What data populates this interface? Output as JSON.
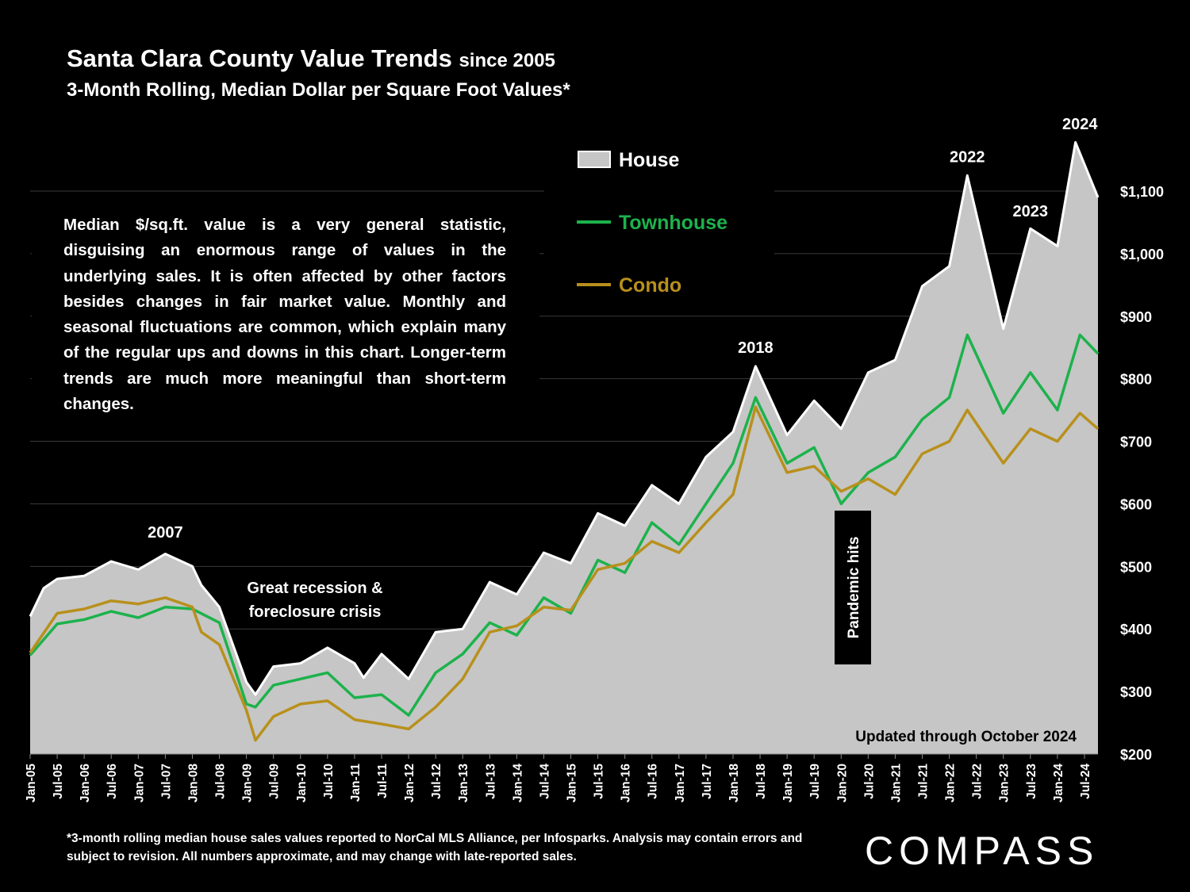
{
  "header": {
    "title": "Santa Clara County Value Trends",
    "title_suffix": "since 2005",
    "subtitle": "3-Month Rolling, Median Dollar per Square Foot Values*"
  },
  "description": "Median $/sq.ft. value is a very general statistic, disguising an enormous range of values in the underlying sales. It is often affected by other factors besides changes in fair market value. Monthly and seasonal fluctuations are common, which explain many of the regular ups and downs in this chart. Longer-term trends are much more meaningful than short-term changes.",
  "footnote": "*3-month rolling median house sales values reported to NorCal MLS Alliance, per Infosparks. Analysis may contain errors and subject to revision. All numbers approximate, and may change with late-reported sales.",
  "brand": "COMPASS",
  "colors": {
    "house": "#c6c6c6",
    "townhouse": "#1db24c",
    "condo": "#b8901c"
  },
  "chart_data": {
    "type": "area",
    "title": "Santa Clara County Value Trends since 2005",
    "subtitle": "3-Month Rolling, Median Dollar per Square Foot Values*",
    "x_start": "Jan-05",
    "x_end": "Oct-24",
    "x_ticks": [
      "Jan-05",
      "Jul-05",
      "Jan-06",
      "Jul-06",
      "Jan-07",
      "Jul-07",
      "Jan-08",
      "Jul-08",
      "Jan-09",
      "Jul-09",
      "Jan-10",
      "Jul-10",
      "Jan-11",
      "Jul-11",
      "Jan-12",
      "Jul-12",
      "Jan-13",
      "Jul-13",
      "Jan-14",
      "Jul-14",
      "Jan-15",
      "Jul-15",
      "Jan-16",
      "Jul-16",
      "Jan-17",
      "Jul-17",
      "Jan-18",
      "Jul-18",
      "Jan-19",
      "Jul-19",
      "Jan-20",
      "Jul-20",
      "Jan-21",
      "Jul-21",
      "Jan-22",
      "Jul-22",
      "Jan-23",
      "Jul-23",
      "Jan-24",
      "Jul-24"
    ],
    "y_ticks": [
      "$200",
      "$300",
      "$400",
      "$500",
      "$600",
      "$700",
      "$800",
      "$900",
      "$1,000",
      "$1,100"
    ],
    "ylim": [
      200,
      1100
    ],
    "y_axis_position": "right",
    "legend_position": "top-center",
    "series": [
      {
        "name": "House",
        "style": "area",
        "color": "#c6c6c6",
        "points": [
          [
            "Jan-05",
            420
          ],
          [
            "Apr-05",
            465
          ],
          [
            "Jul-05",
            480
          ],
          [
            "Jan-06",
            485
          ],
          [
            "Jul-06",
            508
          ],
          [
            "Jan-07",
            495
          ],
          [
            "Jul-07",
            520
          ],
          [
            "Jan-08",
            500
          ],
          [
            "Mar-08",
            470
          ],
          [
            "Jul-08",
            435
          ],
          [
            "Jan-09",
            315
          ],
          [
            "Mar-09",
            295
          ],
          [
            "Jul-09",
            340
          ],
          [
            "Jan-10",
            345
          ],
          [
            "Jul-10",
            370
          ],
          [
            "Jan-11",
            345
          ],
          [
            "Mar-11",
            322
          ],
          [
            "Jul-11",
            360
          ],
          [
            "Jan-12",
            320
          ],
          [
            "Jul-12",
            395
          ],
          [
            "Jan-13",
            400
          ],
          [
            "Jul-13",
            475
          ],
          [
            "Jan-14",
            455
          ],
          [
            "Jul-14",
            522
          ],
          [
            "Jan-15",
            505
          ],
          [
            "Jul-15",
            585
          ],
          [
            "Jan-16",
            565
          ],
          [
            "Jul-16",
            630
          ],
          [
            "Jan-17",
            600
          ],
          [
            "Jul-17",
            675
          ],
          [
            "Jan-18",
            715
          ],
          [
            "Jun-18",
            820
          ],
          [
            "Jan-19",
            710
          ],
          [
            "Jul-19",
            765
          ],
          [
            "Jan-20",
            720
          ],
          [
            "Jul-20",
            810
          ],
          [
            "Jan-21",
            830
          ],
          [
            "Jul-21",
            948
          ],
          [
            "Jan-22",
            980
          ],
          [
            "May-22",
            1125
          ],
          [
            "Jan-23",
            880
          ],
          [
            "Jul-23",
            1040
          ],
          [
            "Jan-24",
            1012
          ],
          [
            "May-24",
            1178
          ],
          [
            "Oct-24",
            1090
          ]
        ]
      },
      {
        "name": "Townhouse",
        "style": "line",
        "color": "#1db24c",
        "points": [
          [
            "Jan-05",
            358
          ],
          [
            "Jul-05",
            408
          ],
          [
            "Jan-06",
            415
          ],
          [
            "Jul-06",
            428
          ],
          [
            "Jan-07",
            418
          ],
          [
            "Jul-07",
            435
          ],
          [
            "Jan-08",
            432
          ],
          [
            "Jul-08",
            410
          ],
          [
            "Jan-09",
            280
          ],
          [
            "Mar-09",
            275
          ],
          [
            "Jul-09",
            310
          ],
          [
            "Jan-10",
            320
          ],
          [
            "Jul-10",
            330
          ],
          [
            "Jan-11",
            290
          ],
          [
            "Jul-11",
            295
          ],
          [
            "Jan-12",
            262
          ],
          [
            "Jul-12",
            330
          ],
          [
            "Jan-13",
            360
          ],
          [
            "Jul-13",
            410
          ],
          [
            "Jan-14",
            390
          ],
          [
            "Jul-14",
            450
          ],
          [
            "Jan-15",
            425
          ],
          [
            "Jul-15",
            510
          ],
          [
            "Jan-16",
            490
          ],
          [
            "Jul-16",
            570
          ],
          [
            "Jan-17",
            535
          ],
          [
            "Jul-17",
            600
          ],
          [
            "Jan-18",
            665
          ],
          [
            "Jun-18",
            770
          ],
          [
            "Jan-19",
            665
          ],
          [
            "Jul-19",
            690
          ],
          [
            "Jan-20",
            600
          ],
          [
            "Jul-20",
            650
          ],
          [
            "Jan-21",
            675
          ],
          [
            "Jul-21",
            735
          ],
          [
            "Jan-22",
            770
          ],
          [
            "May-22",
            870
          ],
          [
            "Jan-23",
            745
          ],
          [
            "Jul-23",
            810
          ],
          [
            "Jan-24",
            750
          ],
          [
            "Jun-24",
            870
          ],
          [
            "Oct-24",
            840
          ]
        ]
      },
      {
        "name": "Condo",
        "style": "line",
        "color": "#b8901c",
        "points": [
          [
            "Jan-05",
            362
          ],
          [
            "Jul-05",
            425
          ],
          [
            "Jan-06",
            432
          ],
          [
            "Jul-06",
            445
          ],
          [
            "Jan-07",
            440
          ],
          [
            "Jul-07",
            450
          ],
          [
            "Jan-08",
            435
          ],
          [
            "Mar-08",
            395
          ],
          [
            "Jul-08",
            375
          ],
          [
            "Jan-09",
            270
          ],
          [
            "Mar-09",
            222
          ],
          [
            "Jul-09",
            260
          ],
          [
            "Jan-10",
            280
          ],
          [
            "Jul-10",
            285
          ],
          [
            "Jan-11",
            255
          ],
          [
            "Jul-11",
            248
          ],
          [
            "Jan-12",
            240
          ],
          [
            "Jul-12",
            275
          ],
          [
            "Jan-13",
            320
          ],
          [
            "Jul-13",
            395
          ],
          [
            "Jan-14",
            405
          ],
          [
            "Jul-14",
            435
          ],
          [
            "Jan-15",
            430
          ],
          [
            "Jul-15",
            495
          ],
          [
            "Jan-16",
            505
          ],
          [
            "Jul-16",
            540
          ],
          [
            "Jan-17",
            522
          ],
          [
            "Jul-17",
            570
          ],
          [
            "Jan-18",
            615
          ],
          [
            "Jun-18",
            755
          ],
          [
            "Jan-19",
            650
          ],
          [
            "Jul-19",
            660
          ],
          [
            "Jan-20",
            620
          ],
          [
            "Jul-20",
            640
          ],
          [
            "Jan-21",
            615
          ],
          [
            "Jul-21",
            680
          ],
          [
            "Jan-22",
            700
          ],
          [
            "May-22",
            750
          ],
          [
            "Jan-23",
            665
          ],
          [
            "Jul-23",
            720
          ],
          [
            "Jan-24",
            700
          ],
          [
            "Jun-24",
            745
          ],
          [
            "Oct-24",
            720
          ]
        ]
      }
    ],
    "annotations": [
      {
        "text": "2007",
        "x": "Jul-07",
        "y": 555
      },
      {
        "text": "Great recession & foreclosure crisis",
        "x": "Jul-10",
        "y": 455
      },
      {
        "text": "2018",
        "x": "Jun-18",
        "y": 850
      },
      {
        "text": "Pandemic hits",
        "x": "Mar-20",
        "y": 475,
        "boxed": true,
        "rotated": true
      },
      {
        "text": "2022",
        "x": "May-22",
        "y": 1155
      },
      {
        "text": "2023",
        "x": "Jul-23",
        "y": 1068
      },
      {
        "text": "2024",
        "x": "Jun-24",
        "y": 1208
      },
      {
        "text": "Updated through October 2024",
        "x": "Jul-23",
        "y": 228
      }
    ]
  }
}
